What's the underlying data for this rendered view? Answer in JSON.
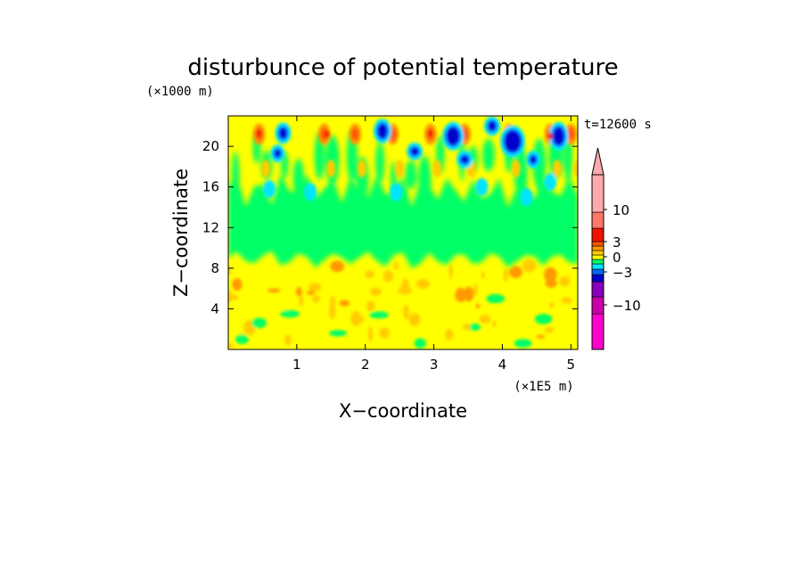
{
  "chart_data": {
    "type": "heatmap",
    "title": "disturbunce of potential temperature",
    "y_unit": "(×1000 m)",
    "x_unit": "(×1E5 m)",
    "xlabel": "X−coordinate",
    "ylabel": "Z−coordinate",
    "time_label": "t=12600 s",
    "xlim": [
      0,
      5.1
    ],
    "ylim": [
      0,
      23
    ],
    "x_ticks": [
      "1",
      "2",
      "3",
      "4",
      "5"
    ],
    "y_ticks": [
      "4",
      "8",
      "12",
      "16",
      "20"
    ],
    "colorbar": {
      "levels": [
        -10,
        -3,
        0,
        3,
        10
      ],
      "tick_labels": [
        "10",
        "3",
        "0",
        "−3",
        "−10"
      ],
      "colors": [
        "#ff00cc",
        "#cc00aa",
        "#8800bb",
        "#0000cc",
        "#0066ff",
        "#00e5ff",
        "#00ff66",
        "#ffff00",
        "#ffcc00",
        "#ff9900",
        "#ff5500",
        "#ee1100",
        "#ff7766",
        "#ffaaaa"
      ]
    },
    "regions": [
      {
        "level": "near 0 (slightly positive)",
        "z_range": [
          0,
          9
        ],
        "color": "#ffff00"
      },
      {
        "level": "near 0 (slightly negative)",
        "z_range": [
          9,
          14
        ],
        "color": "#00ff66"
      },
      {
        "level": "wave pattern, ±3 to ±10",
        "z_range": [
          14,
          23
        ],
        "color": "mixed"
      }
    ],
    "grid": false,
    "legend": "colorbar right"
  }
}
